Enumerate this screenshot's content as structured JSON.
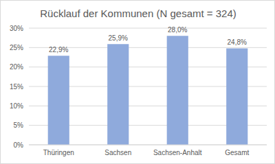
{
  "chart_data": {
    "type": "bar",
    "title": "Rücklauf der Kommunen (N gesamt = 324)",
    "categories": [
      "Thüringen",
      "Sachsen",
      "Sachsen-Anhalt",
      "Gesamt"
    ],
    "values": [
      22.9,
      25.9,
      28.0,
      24.8
    ],
    "value_labels": [
      "22,9%",
      "25,9%",
      "28,0%",
      "24,8%"
    ],
    "color": "#8faadc",
    "ylim": [
      0,
      30
    ],
    "yticks": [
      {
        "value": 0,
        "label": "0%"
      },
      {
        "value": 5,
        "label": "5%"
      },
      {
        "value": 10,
        "label": "10%"
      },
      {
        "value": 15,
        "label": "15%"
      },
      {
        "value": 20,
        "label": "20%"
      },
      {
        "value": 25,
        "label": "25%"
      },
      {
        "value": 30,
        "label": "30%"
      }
    ],
    "grid": true,
    "data_labels": true
  }
}
